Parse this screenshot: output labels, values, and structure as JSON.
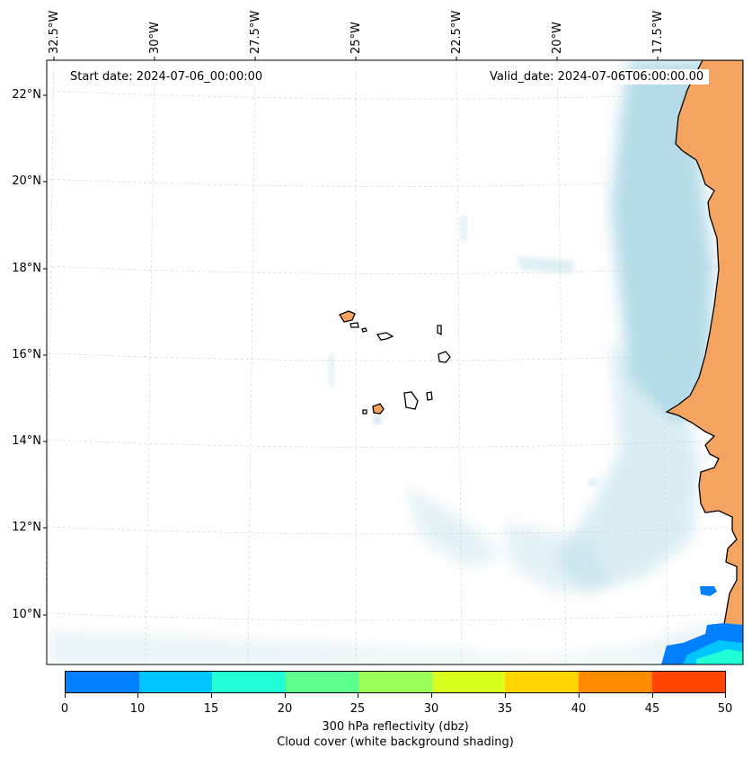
{
  "map": {
    "start_date_label": "Start date: 2024-07-06_00:00:00",
    "valid_date_label": "Valid_date: 2024-07-06T06:00:00.00",
    "longitude_labels": [
      "32.5°W",
      "30°W",
      "27.5°W",
      "25°W",
      "22.5°W",
      "20°W",
      "17.5°W"
    ],
    "latitude_labels": [
      "22°N",
      "20°N",
      "18°N",
      "16°N",
      "14°N",
      "12°N",
      "10°N"
    ],
    "colors": {
      "land": "#f4a460",
      "cloud": "#add8e6",
      "coastline": "#000000",
      "gridline": "#cccccc"
    }
  },
  "colorbar": {
    "title": "300 hPa reflectivity (dbz)",
    "subtitle": "Cloud cover (white background shading)",
    "tick_labels": [
      "0",
      "10",
      "15",
      "20",
      "25",
      "30",
      "35",
      "40",
      "45",
      "50"
    ],
    "colors": [
      "#007fff",
      "#00c5ff",
      "#20ffd5",
      "#5fff8f",
      "#9bff59",
      "#d8ff20",
      "#ffd500",
      "#ff8c00",
      "#ff4500"
    ]
  }
}
